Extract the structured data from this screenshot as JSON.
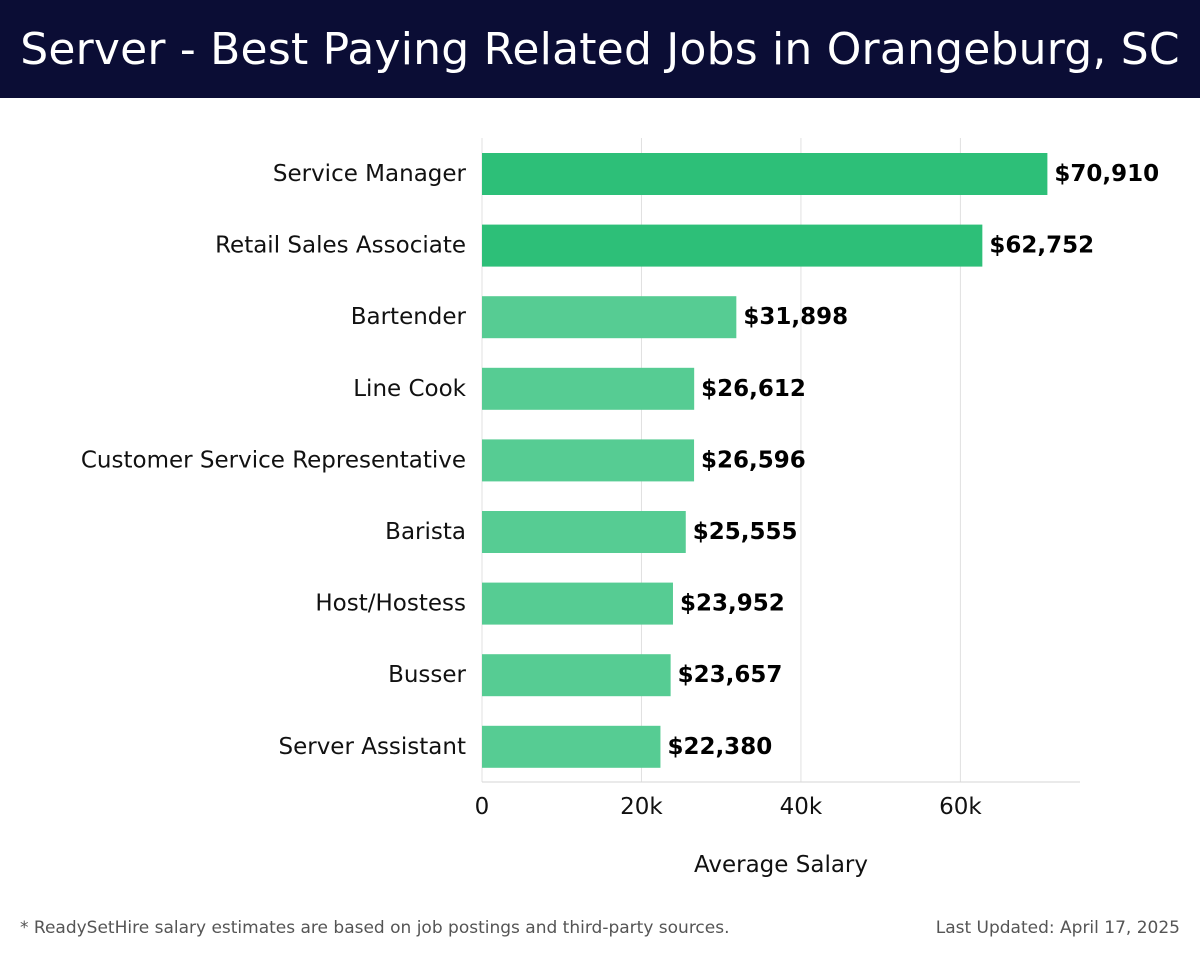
{
  "header": {
    "title": "Server - Best Paying Related Jobs in Orangeburg, SC"
  },
  "chart_data": {
    "type": "bar",
    "orientation": "horizontal",
    "categories": [
      "Service Manager",
      "Retail Sales Associate",
      "Bartender",
      "Line Cook",
      "Customer Service Representative",
      "Barista",
      "Host/Hostess",
      "Busser",
      "Server Assistant"
    ],
    "values": [
      70910,
      62752,
      31898,
      26612,
      26596,
      25555,
      23952,
      23657,
      22380
    ],
    "value_labels": [
      "$70,910",
      "$62,752",
      "$31,898",
      "$26,612",
      "$26,596",
      "$25,555",
      "$23,952",
      "$23,657",
      "$22,380"
    ],
    "xlabel": "Average Salary",
    "xlim": [
      0,
      75000
    ],
    "xticks": [
      0,
      20000,
      40000,
      60000
    ],
    "xtick_labels": [
      "0",
      "20k",
      "40k",
      "60k"
    ],
    "grid": "vertical",
    "colors": {
      "top_bars": "#2dbf78",
      "other_bars": "#56cc93",
      "grid": "#e0e0e0",
      "text": "#111111"
    },
    "highlight_count": 2
  },
  "footer": {
    "note": "* ReadySetHire salary estimates are based on job postings and third-party sources.",
    "updated": "Last Updated: April 17, 2025"
  }
}
